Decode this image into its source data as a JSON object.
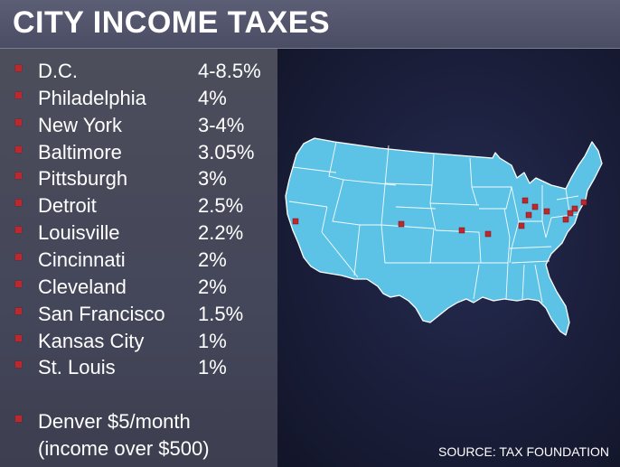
{
  "title": "CITY INCOME TAXES",
  "cities": [
    {
      "name": "D.C.",
      "rate": "4-8.5%"
    },
    {
      "name": "Philadelphia",
      "rate": "4%"
    },
    {
      "name": "New York",
      "rate": "3-4%"
    },
    {
      "name": "Baltimore",
      "rate": "3.05%"
    },
    {
      "name": "Pittsburgh",
      "rate": "3%"
    },
    {
      "name": "Detroit",
      "rate": "2.5%"
    },
    {
      "name": "Louisville",
      "rate": "2.2%"
    },
    {
      "name": "Cincinnati",
      "rate": "2%"
    },
    {
      "name": "Cleveland",
      "rate": "2%"
    },
    {
      "name": "San Francisco",
      "rate": "1.5%"
    },
    {
      "name": "Kansas City",
      "rate": "1%"
    },
    {
      "name": "St. Louis",
      "rate": "1%"
    }
  ],
  "denver_note": {
    "line1": "Denver $5/month",
    "line2": "(income over $500)"
  },
  "source": "SOURCE: TAX FOUNDATION",
  "colors": {
    "map_fill": "#5cc3e6",
    "marker": "#c0272d",
    "header": "#55586e"
  }
}
